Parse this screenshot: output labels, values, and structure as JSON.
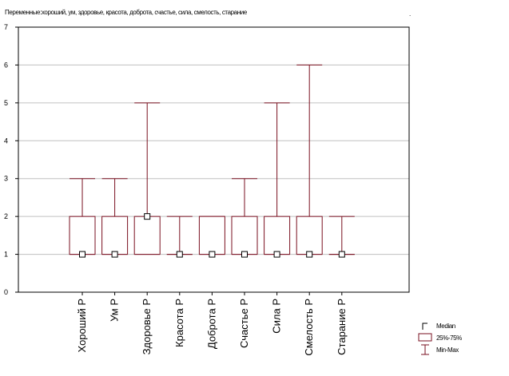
{
  "chart_data": {
    "type": "boxplot",
    "title": "Переменные:хороший, ум, здоровье, красота, доброта, счастье, сила, смелость, старание",
    "corner_mark": ".",
    "categories": [
      "Хороший Р",
      "Ум Р",
      "Здоровье Р",
      "Красота Р",
      "Доброта Р",
      "Счастье Р",
      "Сила Р",
      "Смелость Р",
      "Старание Р"
    ],
    "median": [
      1,
      1,
      2,
      1,
      1,
      1,
      1,
      1,
      1
    ],
    "q1": [
      1,
      1,
      1,
      1,
      1,
      1,
      1,
      1,
      1
    ],
    "q3": [
      2,
      2,
      2,
      1,
      2,
      2,
      2,
      2,
      1
    ],
    "min": [
      1,
      1,
      1,
      1,
      1,
      1,
      1,
      1,
      1
    ],
    "max": [
      3,
      3,
      5,
      2,
      2,
      3,
      5,
      6,
      2
    ],
    "ylim": [
      0,
      7
    ],
    "yticks": [
      0,
      1,
      2,
      3,
      4,
      5,
      6,
      7
    ],
    "grid": true,
    "legend": {
      "position": "bottom-right",
      "items": [
        "Median",
        "25%-75%",
        "Min-Max"
      ]
    },
    "colors": {
      "box": "#7a1020",
      "grid": "#c0c0c0",
      "axis": "#000000"
    }
  }
}
